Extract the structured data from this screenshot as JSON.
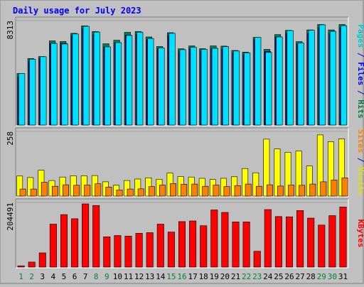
{
  "chart_data": {
    "type": "bar",
    "title": "Daily usage for July 2023",
    "categories": [
      "1",
      "2",
      "3",
      "4",
      "5",
      "6",
      "7",
      "8",
      "9",
      "10",
      "11",
      "12",
      "13",
      "14",
      "15",
      "16",
      "17",
      "18",
      "19",
      "20",
      "21",
      "22",
      "23",
      "24",
      "25",
      "26",
      "27",
      "28",
      "29",
      "30",
      "31"
    ],
    "weekend_days": [
      "1",
      "2",
      "8",
      "9",
      "15",
      "16",
      "22",
      "23",
      "29",
      "30"
    ],
    "panels": [
      {
        "id": "pages-files-hits",
        "y_max_label": "8313",
        "ylim": [
          0,
          8313
        ],
        "axis_title_parts": [
          {
            "text": "Pages",
            "color": "#00C8C8"
          },
          {
            "text": " / ",
            "color": "#0000CC"
          },
          {
            "text": "Files",
            "color": "#0000FF"
          },
          {
            "text": " / ",
            "color": "#0000CC"
          },
          {
            "text": "Hits",
            "color": "#008040"
          }
        ],
        "series": [
          {
            "name": "Hits",
            "color": "#00805A",
            "values": [
              4100,
              5300,
              5450,
              6700,
              6650,
              7300,
              7900,
              7450,
              6470,
              6750,
              7380,
              7450,
              7010,
              6250,
              7350,
              6070,
              6300,
              6080,
              6300,
              6280,
              5940,
              5810,
              6980,
              6020,
              7200,
              7540,
              6640,
              7570,
              8000,
              7570,
              8000
            ]
          },
          {
            "name": "Files",
            "color": "#0000FF",
            "values": [
              3800,
              5100,
              5300,
              6500,
              6500,
              7100,
              7700,
              7200,
              6200,
              6550,
              7150,
              7250,
              6800,
              6050,
              7100,
              5900,
              6100,
              5900,
              6100,
              6050,
              5750,
              5600,
              6800,
              5850,
              7000,
              7300,
              6450,
              7300,
              7750,
              7300,
              7750
            ]
          },
          {
            "name": "Pages",
            "color": "#00E0FF",
            "values": [
              4100,
              5240,
              5440,
              6500,
              6450,
              7250,
              7860,
              7400,
              6220,
              6560,
              7130,
              7390,
              6890,
              6140,
              7300,
              6000,
              6180,
              6020,
              6110,
              6240,
              5890,
              5740,
              6970,
              5780,
              7010,
              7520,
              6530,
              7540,
              7980,
              7460,
              7910
            ]
          }
        ]
      },
      {
        "id": "sites-visits",
        "y_max_label": "258",
        "ylim": [
          0,
          258
        ],
        "axis_title_parts": [
          {
            "text": "Sites",
            "color": "#FF8000"
          },
          {
            "text": " / ",
            "color": "#0000CC"
          },
          {
            "text": "Visits",
            "color": "#E0E000"
          }
        ],
        "series": [
          {
            "name": "Visits",
            "color": "#FFFF00",
            "values": [
              80,
              74,
              103,
              62,
              76,
              81,
              81,
              82,
              57,
              43,
              62,
              68,
              73,
              67,
              92,
              78,
              76,
              71,
              66,
              71,
              77,
              110,
              93,
              227,
              188,
              175,
              180,
              120,
              244,
              217,
              228
            ]
          },
          {
            "name": "Sites",
            "color": "#FF8000",
            "values": [
              28,
              28,
              55,
              39,
              45,
              43,
              44,
              49,
              36,
              24,
              28,
              29,
              38,
              44,
              50,
              47,
              48,
              39,
              44,
              38,
              42,
              48,
              39,
              45,
              40,
              44,
              43,
              48,
              57,
              64,
              73
            ]
          }
        ]
      },
      {
        "id": "kbytes",
        "y_max_label": "204491",
        "ylim": [
          0,
          204491
        ],
        "axis_title_parts": [
          {
            "text": "KBytes",
            "color": "#FF0000"
          }
        ],
        "series": [
          {
            "name": "KBytes",
            "color": "#FF0000",
            "values": [
              4000,
              16000,
              45000,
              136000,
              166000,
              153000,
              200000,
              195000,
              96000,
              100000,
              98000,
              107000,
              109000,
              136000,
              111000,
              144000,
              146000,
              131000,
              181000,
              173000,
              143000,
              143000,
              50000,
              182000,
              160000,
              159000,
              179000,
              155000,
              133000,
              163000,
              190000
            ]
          }
        ]
      }
    ],
    "colors": {
      "background": "#C0C0C0",
      "title": "#0000FF",
      "weekday_label": "#000000",
      "weekend_label": "#008040"
    }
  }
}
